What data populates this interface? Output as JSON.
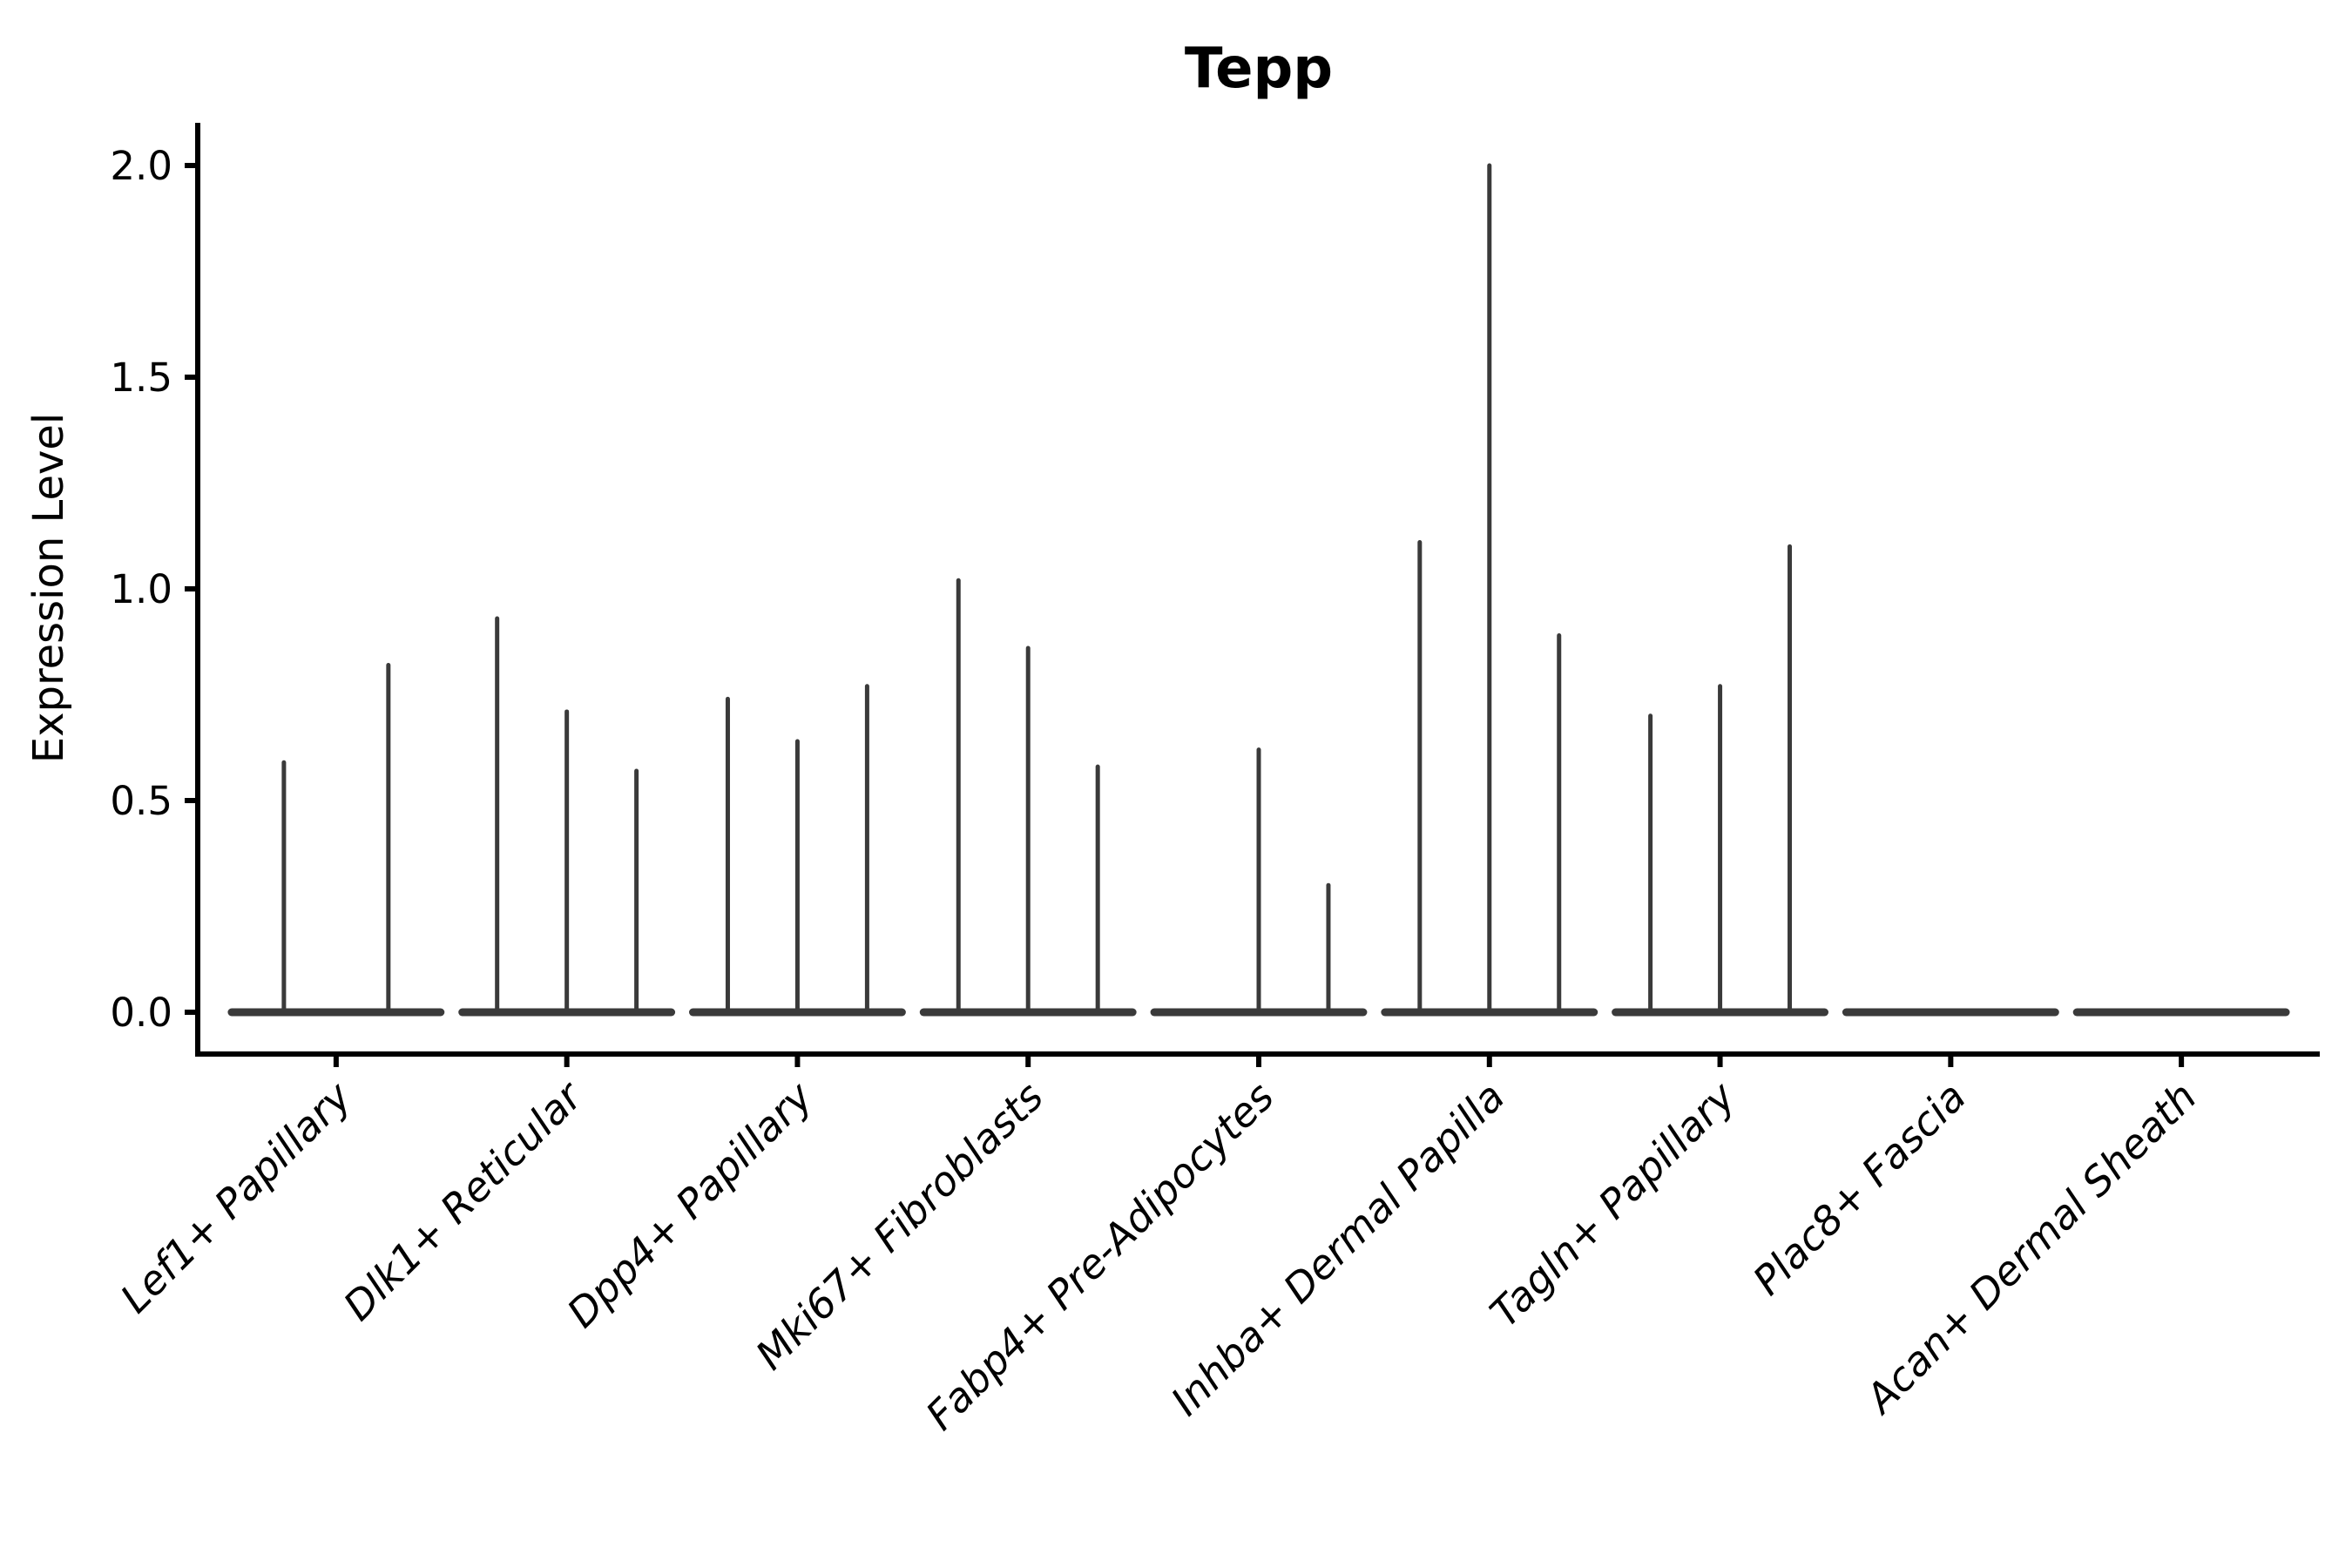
{
  "title": "Tepp",
  "y_axis": {
    "label": "Expression Level",
    "tick_labels": [
      "0.0",
      "0.5",
      "1.0",
      "1.5",
      "2.0"
    ],
    "tick_values": [
      0.0,
      0.5,
      1.0,
      1.5,
      2.0
    ]
  },
  "colors": {
    "background": "#ffffff",
    "axis": "#000000",
    "text": "#000000",
    "violin": "#3a3a3a"
  },
  "chart_data": {
    "type": "violin",
    "title": "Tepp",
    "xlabel": "",
    "ylabel": "Expression Level",
    "ylim": [
      0,
      2.0
    ],
    "yticks": [
      0.0,
      0.5,
      1.0,
      1.5,
      2.0
    ],
    "legend": "none",
    "grid": false,
    "categories": [
      "Lef1+ Papillary",
      "Dlk1+ Reticular",
      "Dpp4+ Papillary",
      "Mki67+ Fibroblasts",
      "Fabp4+ Pre-Adipocytes",
      "Inhba+ Dermal Papilla",
      "Tagln+ Papillary",
      "Plac8+ Fascia",
      "Acan+ Dermal Sheath"
    ],
    "violins": [
      {
        "category": "Lef1+ Papillary",
        "group_maxima": [
          0.59,
          0.82
        ]
      },
      {
        "category": "Dlk1+ Reticular",
        "group_maxima": [
          0.93,
          0.71,
          0.57
        ]
      },
      {
        "category": "Dpp4+ Papillary",
        "group_maxima": [
          0.74,
          0.64,
          0.77
        ]
      },
      {
        "category": "Mki67+ Fibroblasts",
        "group_maxima": [
          1.02,
          0.86,
          0.58
        ]
      },
      {
        "category": "Fabp4+ Pre-Adipocytes",
        "group_maxima": [
          0,
          0.62,
          0.3
        ]
      },
      {
        "category": "Inhba+ Dermal Papilla",
        "group_maxima": [
          1.11,
          2.0,
          0.89
        ]
      },
      {
        "category": "Tagln+ Papillary",
        "group_maxima": [
          0.7,
          0.77,
          1.1
        ]
      },
      {
        "category": "Plac8+ Fascia",
        "group_maxima": [
          0,
          0,
          0
        ]
      },
      {
        "category": "Acan+ Dermal Sheath",
        "group_maxima": [
          0,
          0,
          0
        ]
      }
    ]
  }
}
